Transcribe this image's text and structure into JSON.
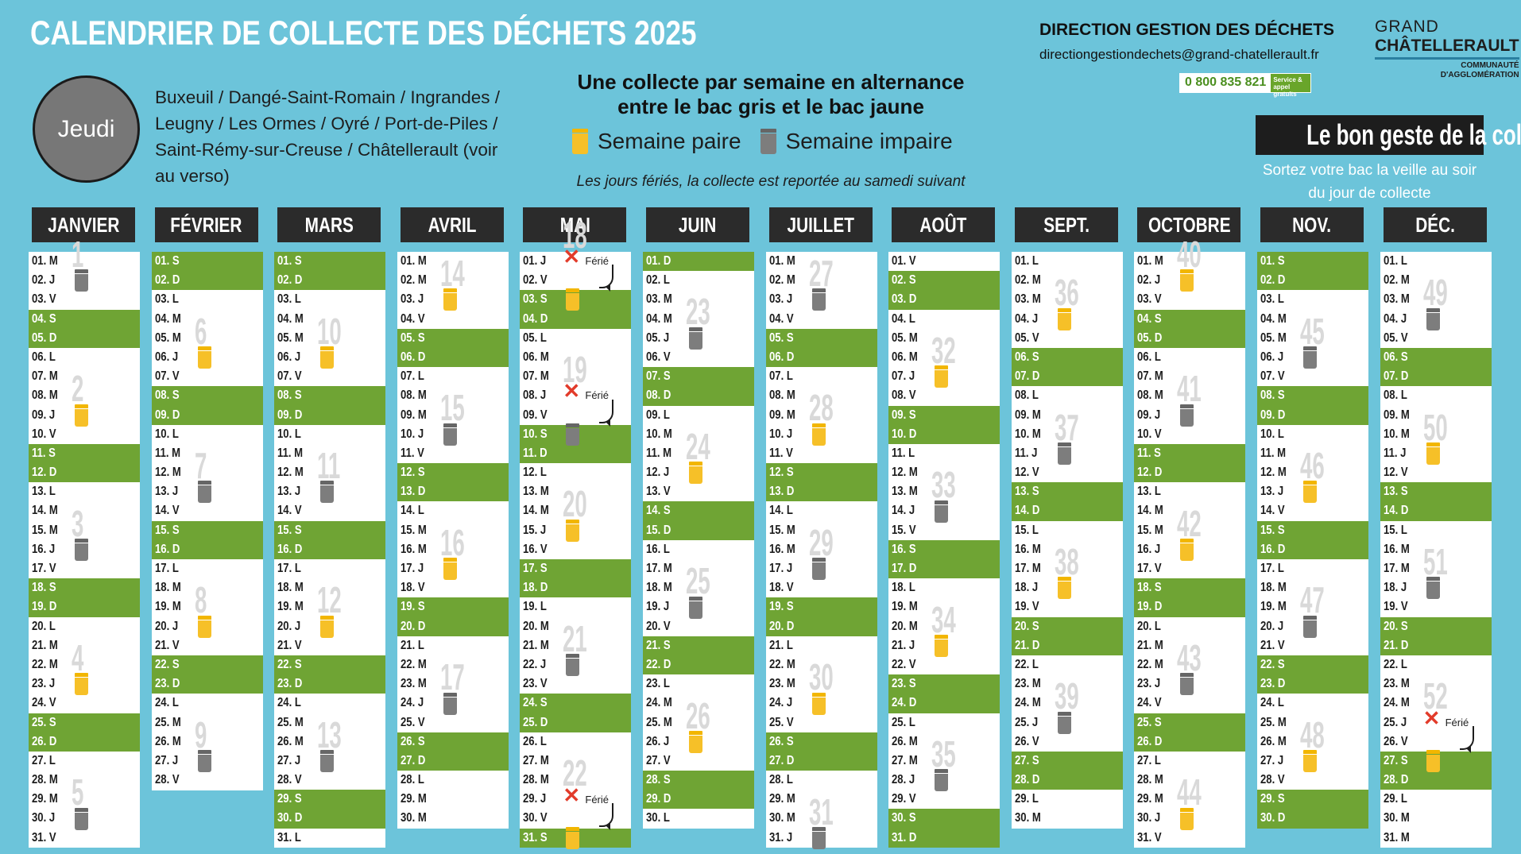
{
  "title": "CALENDRIER DE COLLECTE DES DÉCHETS 2025",
  "day_circle": "Jeudi",
  "communes": "Buxeuil / Dangé-Saint-Romain / Ingrandes / Leugny / Les Ormes / Oyré / Port-de-Piles / Saint-Rémy-sur-Creuse / Châtellerault (voir au verso)",
  "alternance_line1": "Une collecte par semaine en alternance",
  "alternance_line2": "entre le bac gris et le bac jaune",
  "legend": {
    "paire": "Semaine paire",
    "impaire": "Semaine impaire",
    "paire_icon": "yellow-bin-icon",
    "impaire_icon": "gray-bin-icon"
  },
  "ferie_note": "Les jours fériés, la collecte est reportée au samedi suivant",
  "direction": "DIRECTION GESTION DES DÉCHETS",
  "email": "directiongestiondechets@grand-chatellerault.fr",
  "phone": {
    "number": "0 800 835 821",
    "tag": "Service & appel gratuits"
  },
  "logo": {
    "line1": "GRAND",
    "line2": "CHÂTELLERAULT",
    "line3": "COMMUNAUTÉ",
    "line4": "D'AGGLOMÉRATION"
  },
  "bon_geste": "Le bon geste de la collecte",
  "bon_geste_sub": "Sortez votre bac la veille au soir du jour de collecte",
  "ferie_label": "Férié",
  "colors": {
    "background": "#6cc4da",
    "weekend": "#6fa434",
    "header": "#2b2b2b",
    "yellow_bin": "#f6c028",
    "gray_bin": "#7d7d7d"
  },
  "months": [
    {
      "name": "Janvier",
      "days": 31,
      "first": 3
    },
    {
      "name": "Février",
      "days": 28,
      "first": 6
    },
    {
      "name": "Mars",
      "days": 31,
      "first": 6
    },
    {
      "name": "Avril",
      "days": 30,
      "first": 2
    },
    {
      "name": "Mai",
      "days": 31,
      "first": 4
    },
    {
      "name": "Juin",
      "days": 30,
      "first": 0
    },
    {
      "name": "Juillet",
      "days": 31,
      "first": 2
    },
    {
      "name": "Août",
      "days": 31,
      "first": 5
    },
    {
      "name": "Sept.",
      "days": 30,
      "first": 1
    },
    {
      "name": "Octobre",
      "days": 31,
      "first": 3
    },
    {
      "name": "Nov.",
      "days": 30,
      "first": 6
    },
    {
      "name": "Déc.",
      "days": 31,
      "first": 1
    }
  ],
  "day_letters": [
    "D",
    "L",
    "M",
    "M",
    "J",
    "V",
    "S"
  ],
  "feries": [
    {
      "month": 4,
      "day": 1,
      "report": 3
    },
    {
      "month": 4,
      "day": 8,
      "report": 10
    },
    {
      "month": 4,
      "day": 29,
      "report": 31
    },
    {
      "month": 11,
      "day": 25,
      "report": 27
    }
  ]
}
